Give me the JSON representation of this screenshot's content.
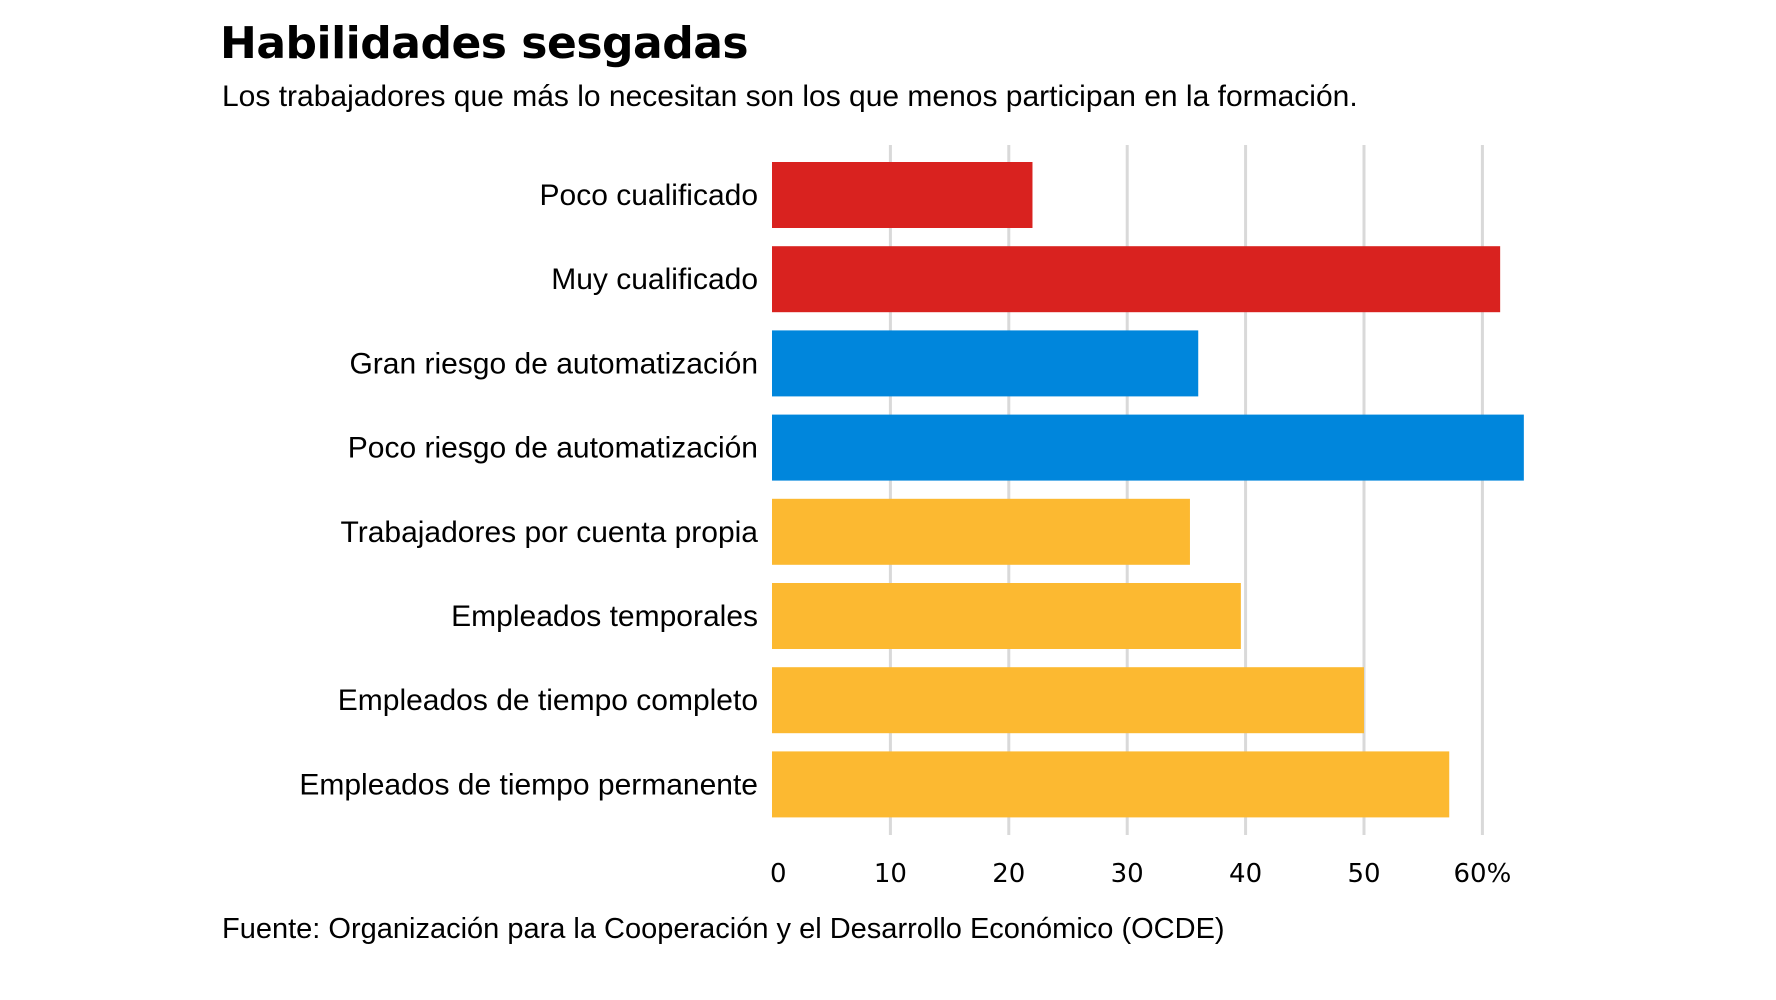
{
  "header": {
    "title": "Habilidades sesgadas",
    "subtitle": "Los trabajadores que más lo necesitan son los que menos participan en la formación."
  },
  "footer": {
    "source": "Fuente: Organización para la Cooperación y el Desarrollo Económico (OCDE)"
  },
  "colors": {
    "skill": "#d9221f",
    "automation": "#0086dc",
    "employment": "#fcb931",
    "grid": "#d9d9d9"
  },
  "chart_data": {
    "type": "bar",
    "orientation": "horizontal",
    "title": "Habilidades sesgadas",
    "subtitle": "Los trabajadores que más lo necesitan son los que menos participan en la formación.",
    "xlabel": "",
    "ylabel": "",
    "xlim": [
      0,
      60
    ],
    "unit": "%",
    "grid": true,
    "ticks": [
      0,
      10,
      20,
      30,
      40,
      50,
      60
    ],
    "tick_labels": [
      "0",
      "10",
      "20",
      "30",
      "40",
      "50",
      "60%"
    ],
    "categories": [
      "Poco cualificado",
      "Muy cualificado",
      "Gran riesgo de automatización",
      "Poco riesgo de automatización",
      "Trabajadores por cuenta propia",
      "Empleados temporales",
      "Empleados de tiempo completo",
      "Empleados de tiempo permanente"
    ],
    "values": [
      22,
      61.5,
      36,
      63.5,
      35.3,
      39.6,
      50,
      57.2
    ],
    "groups": [
      "skill",
      "skill",
      "automation",
      "automation",
      "employment",
      "employment",
      "employment",
      "employment"
    ],
    "source": "Fuente: Organización para la Cooperación y el Desarrollo Económico (OCDE)"
  }
}
